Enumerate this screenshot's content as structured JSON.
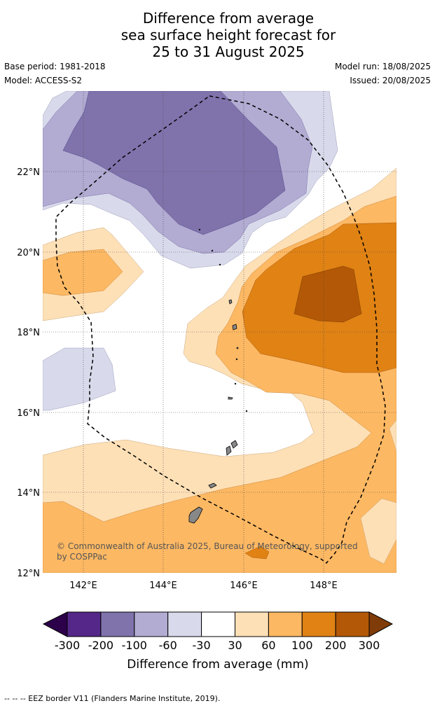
{
  "title": {
    "line1": "Difference from average",
    "line2": "sea surface height forecast for",
    "line3": "25 to 31 August 2025"
  },
  "meta": {
    "base_period": "Base period: 1981-2018",
    "model": "Model: ACCESS-S2",
    "model_run": "Model run: 18/08/2025",
    "issued": "Issued: 20/08/2025"
  },
  "map": {
    "lat_ticks": [
      "22°N",
      "20°N",
      "18°N",
      "16°N",
      "14°N",
      "12°N"
    ],
    "lon_ticks": [
      "142°E",
      "144°E",
      "146°E",
      "148°E"
    ],
    "copyright_line1": "© Commonwealth of Australia 2025, Bureau of Meteorology, supported",
    "copyright_line2": "by COSPPac",
    "colors": {
      "m300": "#2d004b",
      "m200": "#542788",
      "m100": "#8073ac",
      "m60": "#b2abd2",
      "m30": "#d8daeb",
      "zero": "#ffffff",
      "p30": "#fee0b6",
      "p60": "#fdb863",
      "p100": "#e08214",
      "p200": "#b35806",
      "p300": "#7f3b08"
    }
  },
  "colorbar": {
    "labels": [
      "-300",
      "-200",
      "-100",
      "-60",
      "-30",
      "30",
      "60",
      "100",
      "200",
      "300"
    ],
    "title": "Difference from average (mm)"
  },
  "footer": "--  --  -- EEZ border V11 (Flanders Marine Institute, 2019)."
}
